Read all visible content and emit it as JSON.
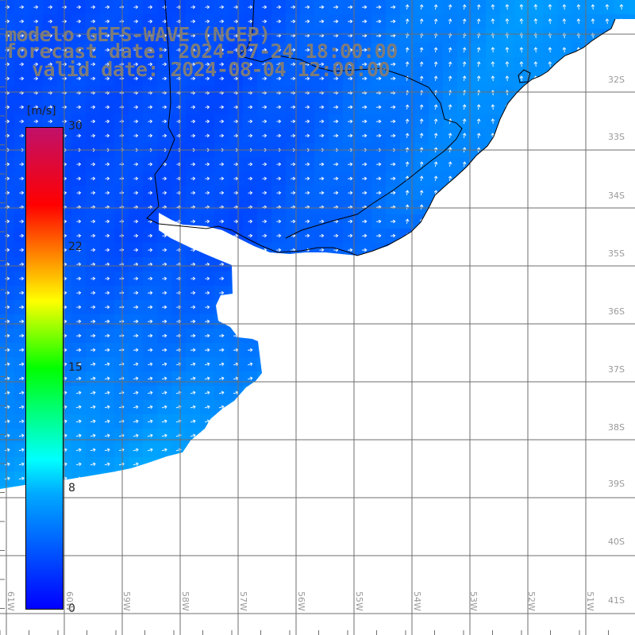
{
  "title": {
    "line1": "modelo GEFS-WAVE (NCEP)",
    "line2": "forecast date: 2024-07-24 18:00:00",
    "line3": "valid date: 2024-08-04 12:00:00"
  },
  "colorbar": {
    "unit": "[m/s]",
    "min": 0,
    "max": 30,
    "ticks": [
      "30",
      "22",
      "15",
      "8",
      "0"
    ],
    "tick_values": [
      30,
      22,
      15,
      8,
      0
    ],
    "colors": [
      "#0000ff",
      "#00aaff",
      "#00ffff",
      "#00ff00",
      "#ffff00",
      "#ff9900",
      "#ff0000",
      "#c0106a"
    ]
  },
  "map": {
    "lat_labels": [
      "32S",
      "33S",
      "34S",
      "35S",
      "36S",
      "37S",
      "38S",
      "39S",
      "40S",
      "41S"
    ],
    "lon_labels": [
      "61W",
      "60W",
      "59W",
      "58W",
      "57W",
      "56W",
      "55W",
      "54W",
      "53W",
      "52W",
      "51W"
    ],
    "land_color": "#ffffff",
    "grid_color": "#6e6e6e",
    "coast_color": "#000000",
    "arrow_color": "#ffffff"
  }
}
